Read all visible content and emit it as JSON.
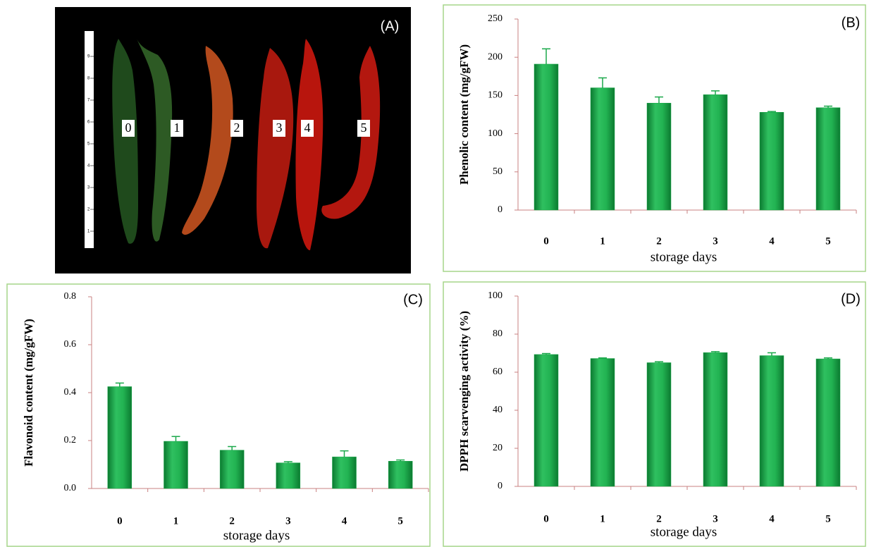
{
  "photo": {
    "label": "(A)",
    "pepper_labels": [
      "0",
      "1",
      "2",
      "3",
      "4",
      "5"
    ],
    "ruler_ticks": [
      "9",
      "8",
      "7",
      "6",
      "5",
      "4",
      "3",
      "2",
      "1"
    ]
  },
  "chart_data": [
    {
      "type": "bar",
      "panel_label": "(B)",
      "y_label": "Phenolic content (mg/gFW)",
      "x_label": "storage days",
      "categories": [
        "0",
        "1",
        "2",
        "3",
        "4",
        "5"
      ],
      "values": [
        191,
        160,
        140,
        151,
        128,
        134
      ],
      "errors": [
        20,
        13,
        8,
        5,
        1,
        2
      ],
      "color": "#1aa84a",
      "ylim": [
        0,
        250
      ],
      "yticks": [
        0,
        50,
        100,
        150,
        200,
        250
      ]
    },
    {
      "type": "bar",
      "panel_label": "(C)",
      "y_label": "Flavonoid content (mg/gFW)",
      "x_label": "storage days",
      "categories": [
        "0",
        "1",
        "2",
        "3",
        "4",
        "5"
      ],
      "values": [
        0.425,
        0.197,
        0.16,
        0.107,
        0.132,
        0.114
      ],
      "errors": [
        0.015,
        0.02,
        0.015,
        0.005,
        0.025,
        0.005
      ],
      "color": "#1aa84a",
      "ylim": [
        0,
        0.8
      ],
      "yticks": [
        {
          "value": 0,
          "label": "0.0"
        },
        0.2,
        0.4,
        0.6,
        0.8
      ]
    },
    {
      "type": "bar",
      "panel_label": "(D)",
      "y_label": "DPPH scarvenging activity (%)",
      "x_label": "storage days",
      "categories": [
        "0",
        "1",
        "2",
        "3",
        "4",
        "5"
      ],
      "values": [
        69.3,
        67.2,
        65,
        70.3,
        68.7,
        67
      ],
      "errors": [
        0.5,
        0.3,
        0.5,
        0.5,
        1.5,
        0.5
      ],
      "color": "#1aa84a",
      "ylim": [
        0,
        100
      ],
      "yticks": [
        0,
        20,
        40,
        60,
        80,
        100
      ]
    }
  ]
}
